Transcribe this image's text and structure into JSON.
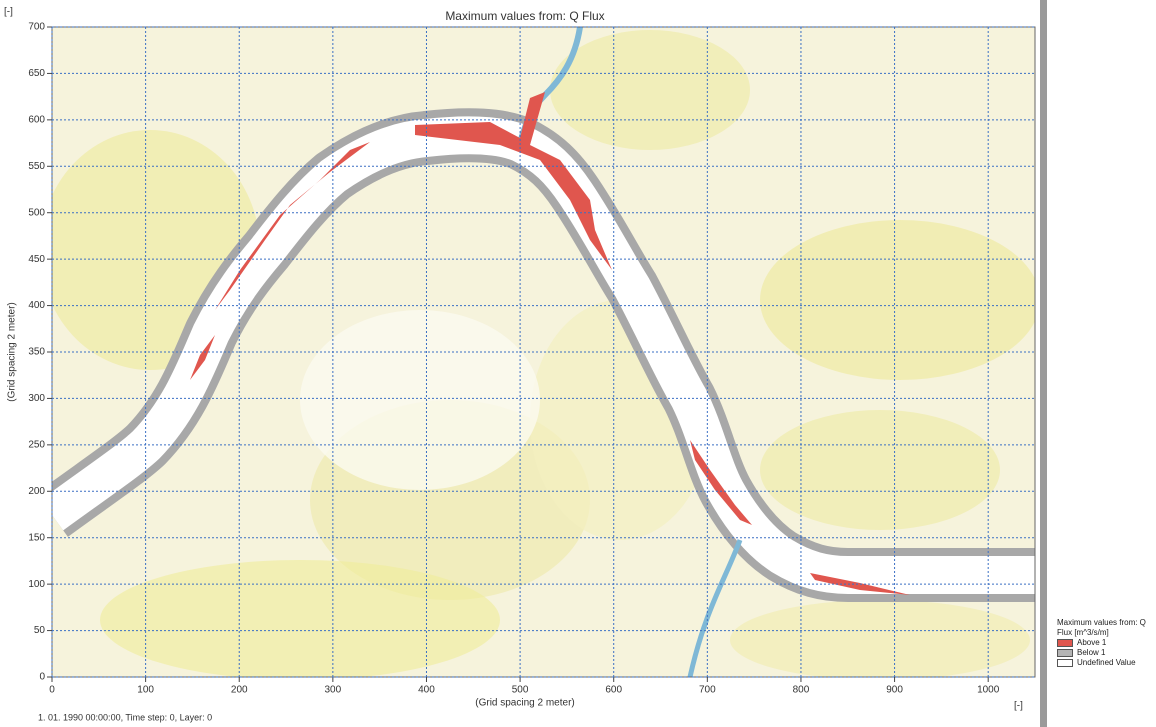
{
  "map": {
    "title": "Maximum values from: Q Flux",
    "y_unit": "[-]",
    "x_unit": "[-]",
    "xlabel": "(Grid spacing 2 meter)",
    "ylabel": "(Grid spacing 2 meter)",
    "xlim": [
      0,
      1050
    ],
    "ylim": [
      0,
      700
    ],
    "xticks": [
      0,
      100,
      200,
      300,
      400,
      500,
      600,
      700,
      800,
      900,
      1000
    ],
    "yticks": [
      0,
      50,
      100,
      150,
      200,
      250,
      300,
      350,
      400,
      450,
      500,
      550,
      600,
      650,
      700
    ],
    "grid": true,
    "status": "1. 01. 1990 00:00:00, Time step: 0, Layer: 0",
    "legend": {
      "title": "Maximum values from: Q Flux [m^3/s/m]",
      "items": [
        {
          "label": "Above 1",
          "color": "#e0564e"
        },
        {
          "label": "Below 1",
          "color": "#b4b4b4"
        },
        {
          "label": "Undefined Value",
          "color": "#ffffff"
        }
      ]
    }
  }
}
